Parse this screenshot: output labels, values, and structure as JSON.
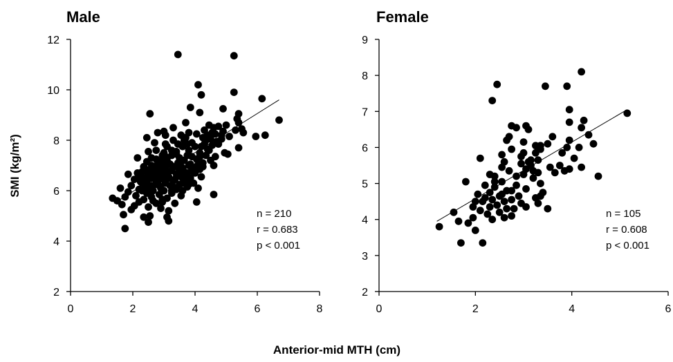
{
  "figure": {
    "ylabel": "SMI (kg/m²)",
    "xlabel": "Anterior-mid MTH (cm)"
  },
  "chart_data": [
    {
      "type": "scatter",
      "title": "Male",
      "xlabel": "Anterior-mid MTH (cm)",
      "ylabel": "SMI (kg/m²)",
      "xlim": [
        0,
        8
      ],
      "ylim": [
        2,
        12
      ],
      "xticks": [
        0,
        2,
        4,
        6,
        8
      ],
      "yticks": [
        2,
        4,
        6,
        8,
        10,
        12
      ],
      "grid": false,
      "stats": [
        "n = 210",
        "r = 0.683",
        "p < 0.001"
      ],
      "trendline": {
        "x": [
          1.4,
          6.7
        ],
        "y": [
          5.5,
          9.6
        ]
      },
      "marker_color": "#000000",
      "points": [
        [
          3.45,
          11.4
        ],
        [
          5.25,
          11.35
        ],
        [
          4.1,
          10.2
        ],
        [
          5.25,
          9.9
        ],
        [
          4.2,
          9.8
        ],
        [
          6.15,
          9.65
        ],
        [
          3.85,
          9.3
        ],
        [
          4.9,
          9.25
        ],
        [
          4.15,
          9.1
        ],
        [
          2.55,
          9.05
        ],
        [
          5.4,
          9.05
        ],
        [
          5.35,
          8.85
        ],
        [
          6.7,
          8.8
        ],
        [
          3.7,
          8.7
        ],
        [
          5.4,
          8.7
        ],
        [
          4.45,
          8.6
        ],
        [
          5.0,
          8.6
        ],
        [
          4.75,
          8.55
        ],
        [
          3.3,
          8.5
        ],
        [
          4.6,
          8.5
        ],
        [
          5.5,
          8.45
        ],
        [
          4.3,
          8.4
        ],
        [
          5.3,
          8.4
        ],
        [
          3.0,
          8.35
        ],
        [
          4.9,
          8.35
        ],
        [
          2.8,
          8.3
        ],
        [
          3.8,
          8.3
        ],
        [
          5.55,
          8.3
        ],
        [
          4.05,
          8.25
        ],
        [
          4.65,
          8.25
        ],
        [
          6.25,
          8.2
        ],
        [
          3.05,
          8.2
        ],
        [
          3.55,
          8.2
        ],
        [
          4.4,
          8.2
        ],
        [
          5.95,
          8.15
        ],
        [
          2.45,
          8.1
        ],
        [
          3.7,
          8.1
        ],
        [
          4.25,
          8.1
        ],
        [
          5.1,
          8.15
        ],
        [
          4.85,
          8.05
        ],
        [
          3.3,
          8.0
        ],
        [
          4.35,
          8.0
        ],
        [
          2.7,
          7.9
        ],
        [
          3.9,
          7.9
        ],
        [
          4.75,
          7.85
        ],
        [
          3.05,
          7.85
        ],
        [
          4.55,
          7.8
        ],
        [
          3.6,
          7.75
        ],
        [
          4.2,
          7.75
        ],
        [
          5.4,
          7.7
        ],
        [
          3.8,
          7.6
        ],
        [
          2.75,
          7.6
        ],
        [
          2.5,
          7.55
        ],
        [
          4.95,
          7.5
        ],
        [
          3.4,
          7.55
        ],
        [
          4.15,
          7.5
        ],
        [
          5.05,
          7.45
        ],
        [
          3.0,
          7.5
        ],
        [
          4.35,
          7.4
        ],
        [
          3.75,
          7.4
        ],
        [
          3.25,
          7.4
        ],
        [
          4.65,
          7.35
        ],
        [
          2.15,
          7.3
        ],
        [
          3.5,
          7.3
        ],
        [
          2.75,
          7.25
        ],
        [
          4.05,
          7.25
        ],
        [
          3.1,
          7.2
        ],
        [
          3.65,
          7.2
        ],
        [
          4.5,
          7.2
        ],
        [
          2.45,
          7.15
        ],
        [
          2.9,
          7.15
        ],
        [
          3.45,
          7.1
        ],
        [
          4.25,
          7.1
        ],
        [
          3.2,
          7.05
        ],
        [
          3.8,
          7.0
        ],
        [
          2.6,
          7.0
        ],
        [
          3.35,
          6.95
        ],
        [
          4.6,
          7.0
        ],
        [
          2.35,
          6.95
        ],
        [
          3.05,
          6.95
        ],
        [
          3.6,
          6.9
        ],
        [
          4.15,
          6.85
        ],
        [
          2.8,
          6.85
        ],
        [
          3.25,
          6.8
        ],
        [
          3.5,
          6.8
        ],
        [
          2.15,
          6.7
        ],
        [
          2.3,
          6.75
        ],
        [
          2.7,
          6.75
        ],
        [
          3.0,
          6.75
        ],
        [
          3.75,
          6.7
        ],
        [
          4.0,
          6.7
        ],
        [
          1.85,
          6.65
        ],
        [
          2.5,
          6.65
        ],
        [
          3.4,
          6.65
        ],
        [
          2.95,
          6.6
        ],
        [
          3.55,
          6.55
        ],
        [
          2.25,
          6.55
        ],
        [
          3.15,
          6.5
        ],
        [
          2.6,
          6.5
        ],
        [
          3.85,
          6.5
        ],
        [
          4.2,
          6.55
        ],
        [
          2.05,
          6.45
        ],
        [
          2.85,
          6.45
        ],
        [
          3.3,
          6.4
        ],
        [
          3.7,
          6.4
        ],
        [
          2.45,
          6.35
        ],
        [
          3.05,
          6.3
        ],
        [
          3.95,
          6.3
        ],
        [
          2.3,
          6.3
        ],
        [
          2.75,
          6.25
        ],
        [
          3.5,
          6.25
        ],
        [
          1.95,
          6.2
        ],
        [
          2.6,
          6.2
        ],
        [
          3.2,
          6.2
        ],
        [
          3.75,
          6.15
        ],
        [
          2.4,
          6.15
        ],
        [
          2.9,
          6.1
        ],
        [
          4.1,
          6.1
        ],
        [
          1.6,
          6.1
        ],
        [
          3.4,
          6.05
        ],
        [
          2.2,
          6.05
        ],
        [
          2.65,
          6.0
        ],
        [
          3.0,
          6.0
        ],
        [
          3.6,
          6.0
        ],
        [
          1.85,
          5.95
        ],
        [
          2.45,
          5.9
        ],
        [
          3.25,
          5.9
        ],
        [
          2.85,
          5.85
        ],
        [
          4.6,
          5.85
        ],
        [
          2.1,
          5.8
        ],
        [
          3.55,
          5.8
        ],
        [
          1.75,
          5.75
        ],
        [
          2.6,
          5.75
        ],
        [
          3.1,
          5.7
        ],
        [
          1.35,
          5.7
        ],
        [
          2.35,
          5.65
        ],
        [
          2.95,
          5.65
        ],
        [
          1.5,
          5.6
        ],
        [
          2.2,
          5.55
        ],
        [
          4.05,
          5.55
        ],
        [
          2.75,
          5.5
        ],
        [
          3.35,
          5.5
        ],
        [
          1.65,
          5.45
        ],
        [
          2.05,
          5.4
        ],
        [
          2.5,
          5.35
        ],
        [
          2.9,
          5.3
        ],
        [
          1.95,
          5.25
        ],
        [
          3.15,
          5.2
        ],
        [
          1.7,
          5.05
        ],
        [
          2.55,
          5.0
        ],
        [
          2.35,
          4.95
        ],
        [
          3.1,
          4.95
        ],
        [
          3.15,
          4.8
        ],
        [
          2.5,
          4.75
        ],
        [
          1.75,
          4.5
        ],
        [
          3.45,
          6.6
        ],
        [
          3.85,
          7.05
        ],
        [
          4.45,
          7.6
        ],
        [
          2.95,
          7.0
        ],
        [
          3.6,
          6.3
        ],
        [
          2.7,
          6.55
        ],
        [
          4.3,
          7.85
        ],
        [
          3.15,
          6.75
        ],
        [
          2.85,
          6.2
        ],
        [
          3.9,
          7.35
        ],
        [
          3.25,
          7.6
        ],
        [
          2.55,
          6.85
        ],
        [
          4.05,
          6.95
        ],
        [
          3.7,
          6.6
        ],
        [
          2.3,
          6.0
        ],
        [
          3.45,
          7.85
        ],
        [
          4.5,
          8.05
        ],
        [
          2.8,
          7.05
        ],
        [
          3.3,
          6.15
        ],
        [
          4.85,
          8.2
        ],
        [
          2.65,
          5.6
        ],
        [
          3.95,
          6.75
        ],
        [
          3.05,
          7.35
        ],
        [
          2.4,
          6.5
        ],
        [
          3.55,
          7.15
        ],
        [
          4.7,
          7.95
        ],
        [
          2.95,
          5.55
        ],
        [
          3.75,
          7.85
        ],
        [
          3.35,
          6.45
        ],
        [
          4.25,
          6.95
        ],
        [
          2.7,
          6.95
        ],
        [
          3.15,
          6.55
        ],
        [
          3.65,
          6.75
        ],
        [
          2.55,
          6.05
        ],
        [
          4.0,
          7.75
        ],
        [
          3.8,
          6.25
        ],
        [
          2.85,
          6.7
        ],
        [
          3.4,
          7.45
        ],
        [
          4.4,
          7.65
        ],
        [
          2.25,
          6.35
        ],
        [
          3.0,
          6.45
        ],
        [
          3.55,
          6.95
        ],
        [
          4.15,
          7.35
        ],
        [
          2.6,
          7.3
        ],
        [
          3.25,
          6.0
        ],
        [
          3.9,
          6.85
        ],
        [
          2.95,
          7.4
        ],
        [
          4.55,
          8.3
        ],
        [
          3.5,
          7.0
        ],
        [
          2.75,
          6.4
        ],
        [
          3.1,
          7.75
        ],
        [
          4.1,
          7.05
        ],
        [
          3.65,
          8.0
        ],
        [
          2.4,
          6.8
        ],
        [
          2.9,
          6.85
        ]
      ]
    },
    {
      "type": "scatter",
      "title": "Female",
      "xlabel": "Anterior-mid MTH (cm)",
      "ylabel": "SMI (kg/m²)",
      "xlim": [
        0,
        6
      ],
      "ylim": [
        2,
        9
      ],
      "xticks": [
        0,
        2,
        4,
        6
      ],
      "yticks": [
        2,
        3,
        4,
        5,
        6,
        7,
        8,
        9
      ],
      "grid": false,
      "stats": [
        "n = 105",
        "r = 0.608",
        "p < 0.001"
      ],
      "trendline": {
        "x": [
          1.2,
          5.15
        ],
        "y": [
          3.95,
          7.05
        ]
      },
      "marker_color": "#000000",
      "points": [
        [
          4.2,
          8.1
        ],
        [
          2.45,
          7.75
        ],
        [
          3.45,
          7.7
        ],
        [
          3.9,
          7.7
        ],
        [
          2.35,
          7.3
        ],
        [
          3.95,
          7.05
        ],
        [
          5.15,
          6.95
        ],
        [
          3.95,
          6.7
        ],
        [
          4.25,
          6.75
        ],
        [
          2.75,
          6.6
        ],
        [
          3.05,
          6.6
        ],
        [
          2.85,
          6.55
        ],
        [
          4.2,
          6.55
        ],
        [
          3.1,
          6.5
        ],
        [
          4.35,
          6.35
        ],
        [
          2.7,
          6.3
        ],
        [
          3.6,
          6.3
        ],
        [
          2.65,
          6.2
        ],
        [
          3.95,
          6.2
        ],
        [
          3.0,
          6.15
        ],
        [
          4.45,
          6.1
        ],
        [
          3.25,
          6.05
        ],
        [
          3.35,
          6.05
        ],
        [
          3.5,
          6.1
        ],
        [
          3.9,
          6.0
        ],
        [
          4.15,
          6.0
        ],
        [
          2.75,
          5.95
        ],
        [
          3.35,
          5.95
        ],
        [
          3.8,
          5.85
        ],
        [
          2.55,
          5.8
        ],
        [
          3.0,
          5.85
        ],
        [
          2.95,
          5.75
        ],
        [
          2.1,
          5.7
        ],
        [
          4.05,
          5.7
        ],
        [
          3.15,
          5.65
        ],
        [
          3.3,
          5.65
        ],
        [
          2.6,
          5.6
        ],
        [
          2.95,
          5.55
        ],
        [
          3.15,
          5.5
        ],
        [
          2.55,
          5.45
        ],
        [
          4.2,
          5.45
        ],
        [
          3.55,
          5.45
        ],
        [
          3.05,
          5.4
        ],
        [
          3.95,
          5.4
        ],
        [
          2.7,
          5.35
        ],
        [
          3.2,
          5.35
        ],
        [
          3.3,
          5.3
        ],
        [
          3.85,
          5.35
        ],
        [
          3.65,
          5.3
        ],
        [
          3.0,
          5.25
        ],
        [
          2.3,
          5.25
        ],
        [
          2.4,
          5.2
        ],
        [
          4.55,
          5.2
        ],
        [
          3.2,
          5.15
        ],
        [
          2.55,
          5.05
        ],
        [
          1.8,
          5.05
        ],
        [
          3.35,
          5.0
        ],
        [
          2.85,
          4.95
        ],
        [
          2.2,
          4.95
        ],
        [
          2.4,
          4.9
        ],
        [
          3.05,
          4.85
        ],
        [
          2.65,
          4.8
        ],
        [
          2.3,
          4.75
        ],
        [
          3.4,
          4.75
        ],
        [
          2.05,
          4.7
        ],
        [
          2.55,
          4.7
        ],
        [
          2.9,
          4.65
        ],
        [
          3.35,
          4.65
        ],
        [
          2.2,
          4.6
        ],
        [
          3.25,
          4.6
        ],
        [
          2.75,
          4.55
        ],
        [
          2.15,
          4.5
        ],
        [
          2.6,
          4.5
        ],
        [
          2.95,
          4.45
        ],
        [
          3.3,
          4.45
        ],
        [
          2.45,
          4.4
        ],
        [
          1.95,
          4.35
        ],
        [
          2.3,
          4.35
        ],
        [
          2.8,
          4.3
        ],
        [
          3.05,
          4.35
        ],
        [
          2.65,
          4.3
        ],
        [
          3.5,
          4.3
        ],
        [
          2.1,
          4.25
        ],
        [
          2.5,
          4.2
        ],
        [
          1.55,
          4.2
        ],
        [
          2.25,
          4.15
        ],
        [
          2.75,
          4.1
        ],
        [
          1.95,
          4.05
        ],
        [
          2.6,
          4.05
        ],
        [
          1.65,
          3.95
        ],
        [
          2.35,
          4.0
        ],
        [
          1.85,
          3.9
        ],
        [
          1.25,
          3.8
        ],
        [
          2.0,
          3.7
        ],
        [
          1.7,
          3.35
        ],
        [
          2.15,
          3.35
        ],
        [
          2.5,
          4.65
        ],
        [
          3.1,
          5.6
        ],
        [
          2.4,
          5.05
        ],
        [
          2.85,
          5.2
        ],
        [
          3.75,
          5.5
        ],
        [
          2.0,
          4.5
        ],
        [
          2.75,
          4.8
        ],
        [
          3.25,
          5.85
        ],
        [
          2.35,
          4.55
        ]
      ]
    }
  ]
}
